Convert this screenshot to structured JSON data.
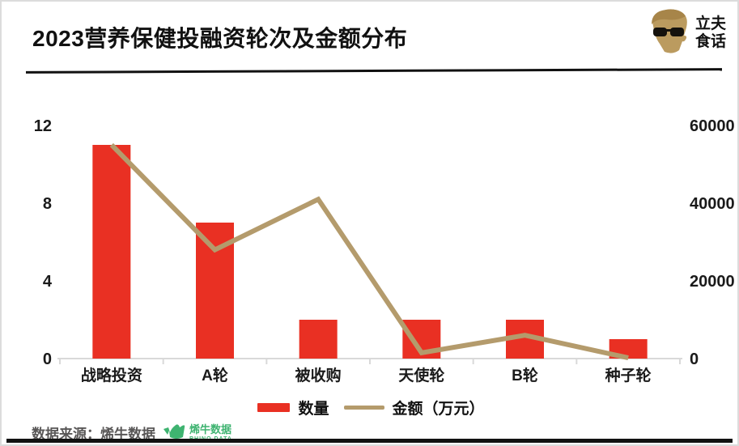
{
  "header": {
    "title": "2023营养保健投融资轮次及金额分布",
    "brand": {
      "name_line1": "立夫",
      "name_line2": "食话",
      "face_color": "#bb9b5f"
    }
  },
  "chart_data": {
    "type": "bar+line combo",
    "categories": [
      "战略投资",
      "A轮",
      "被收购",
      "天使轮",
      "B轮",
      "种子轮"
    ],
    "series": [
      {
        "name": "数量",
        "type": "bar",
        "axis": "left",
        "color": "#e93023",
        "values": [
          11,
          7,
          2,
          2,
          2,
          1
        ]
      },
      {
        "name": "金额（万元）",
        "type": "line",
        "axis": "right",
        "color": "#b49b6c",
        "values": [
          55000,
          28000,
          41000,
          1500,
          6000,
          200
        ]
      }
    ],
    "left_axis": {
      "ticks": [
        0,
        4,
        8,
        12
      ],
      "max": 12
    },
    "right_axis": {
      "ticks": [
        0,
        20000,
        40000,
        60000
      ],
      "max": 60000
    },
    "grid": "off",
    "legend_position": "bottom",
    "axis_line_color": "#d9d9d9",
    "label_color": "#1a1a1a"
  },
  "footer": {
    "source_text": "数据来源：烯牛数据",
    "rhino_logo": {
      "cn": "烯牛数据",
      "en": "RHINO DATA",
      "color": "#3eb370"
    }
  }
}
